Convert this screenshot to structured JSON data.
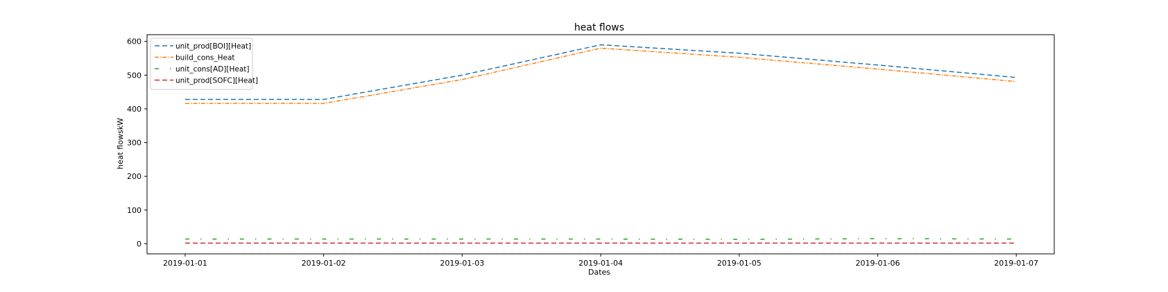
{
  "chart_data": {
    "type": "line",
    "title": "heat flows",
    "xlabel": "Dates",
    "ylabel": "heat flowskW",
    "x": [
      "2019-01-01",
      "2019-01-02",
      "2019-01-03",
      "2019-01-04",
      "2019-01-05",
      "2019-01-06",
      "2019-01-07"
    ],
    "xlim": [
      "2018-12-31T17:24",
      "2019-01-07T06:35"
    ],
    "ylim": [
      -30,
      620
    ],
    "yticks": [
      0,
      100,
      200,
      300,
      400,
      500,
      600
    ],
    "grid": false,
    "legend_position": "top-left",
    "series": [
      {
        "name": "unit_prod[BOI][Heat]",
        "values": [
          428,
          428,
          500,
          590,
          565,
          530,
          493
        ],
        "color": "#1f77b4",
        "linestyle": "dashed"
      },
      {
        "name": "build_cons_Heat",
        "values": [
          416,
          416,
          487,
          580,
          553,
          518,
          481
        ],
        "color": "#ff7f0e",
        "linestyle": "dashdot"
      },
      {
        "name": "unit_cons[AD][Heat]",
        "values": [
          14,
          14,
          14,
          14,
          13,
          15,
          14
        ],
        "color": "#2ca02c",
        "linestyle": "loosely-dashdot"
      },
      {
        "name": "unit_prod[SOFC][Heat]",
        "values": [
          2,
          2,
          2,
          2,
          2,
          2,
          2
        ],
        "color": "#d62728",
        "linestyle": "dashed"
      }
    ]
  }
}
